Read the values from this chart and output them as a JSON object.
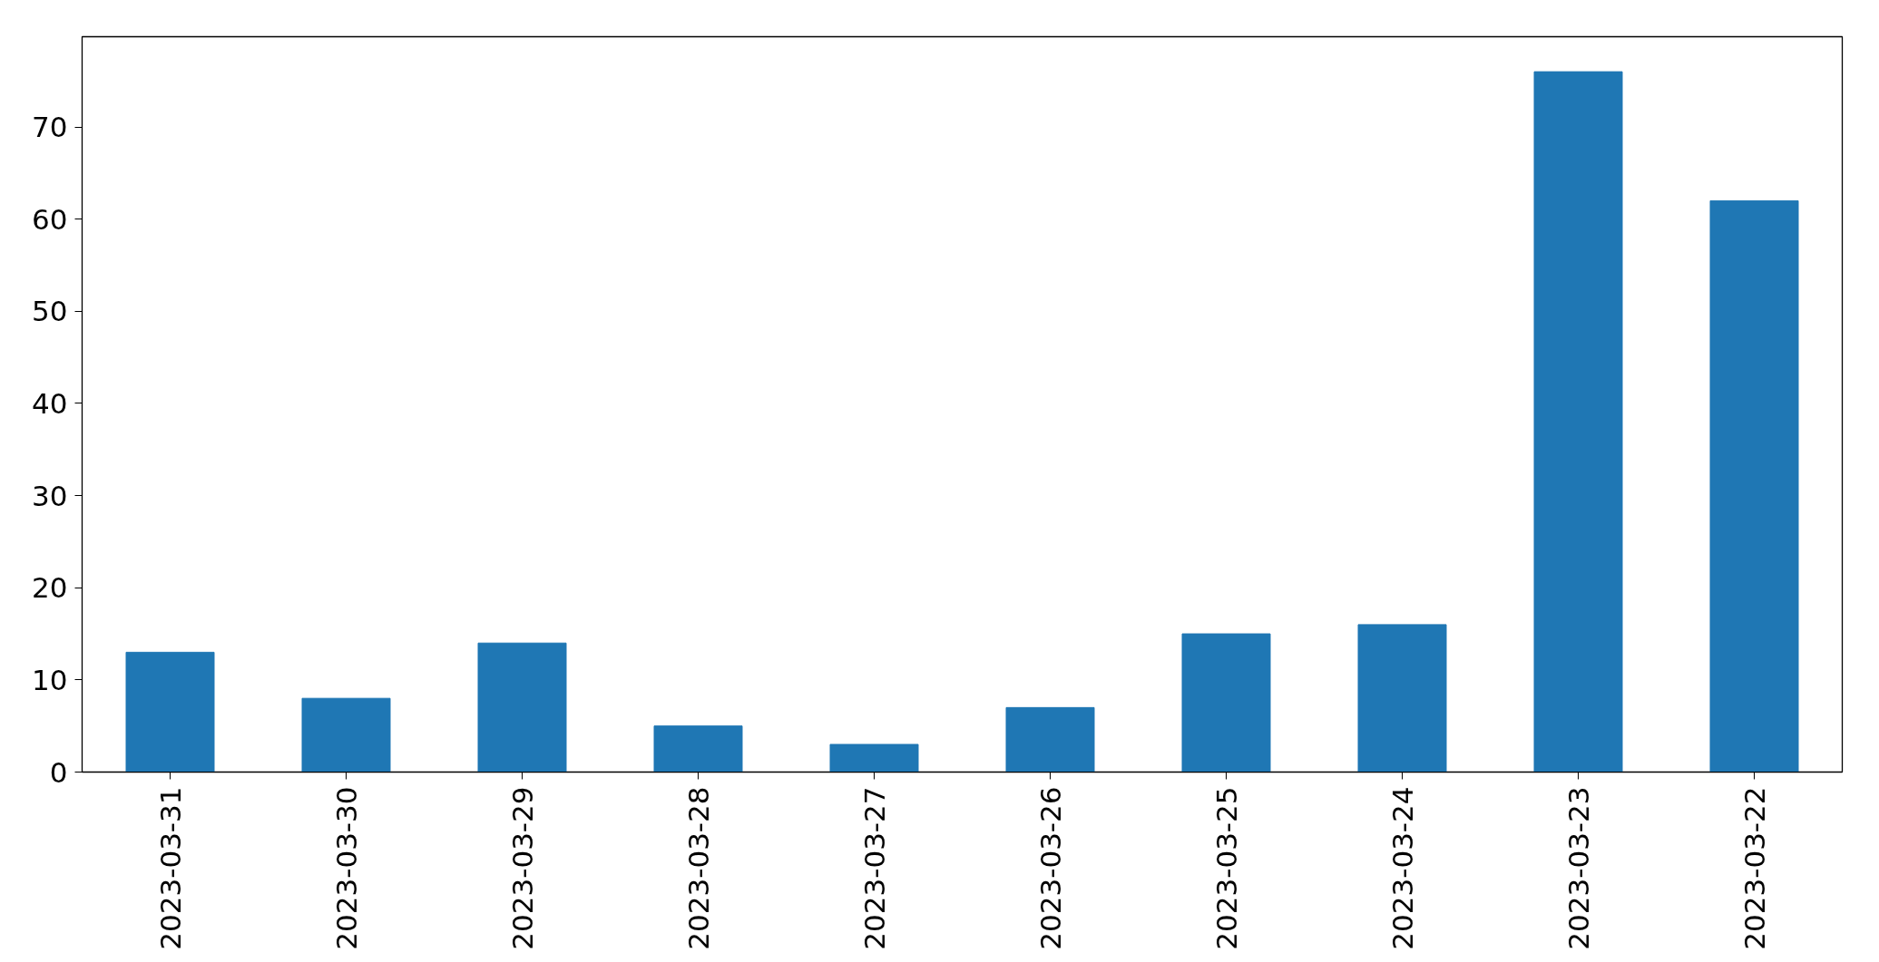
{
  "chart_data": {
    "type": "bar",
    "categories": [
      "2023-03-31",
      "2023-03-30",
      "2023-03-29",
      "2023-03-28",
      "2023-03-27",
      "2023-03-26",
      "2023-03-25",
      "2023-03-24",
      "2023-03-23",
      "2023-03-22"
    ],
    "values": [
      13,
      8,
      14,
      5,
      3,
      7,
      15,
      16,
      76,
      62
    ],
    "color": "#1f77b4",
    "ylim": [
      0,
      79.8
    ],
    "yticks": [
      0,
      10,
      20,
      30,
      40,
      50,
      60,
      70
    ]
  }
}
